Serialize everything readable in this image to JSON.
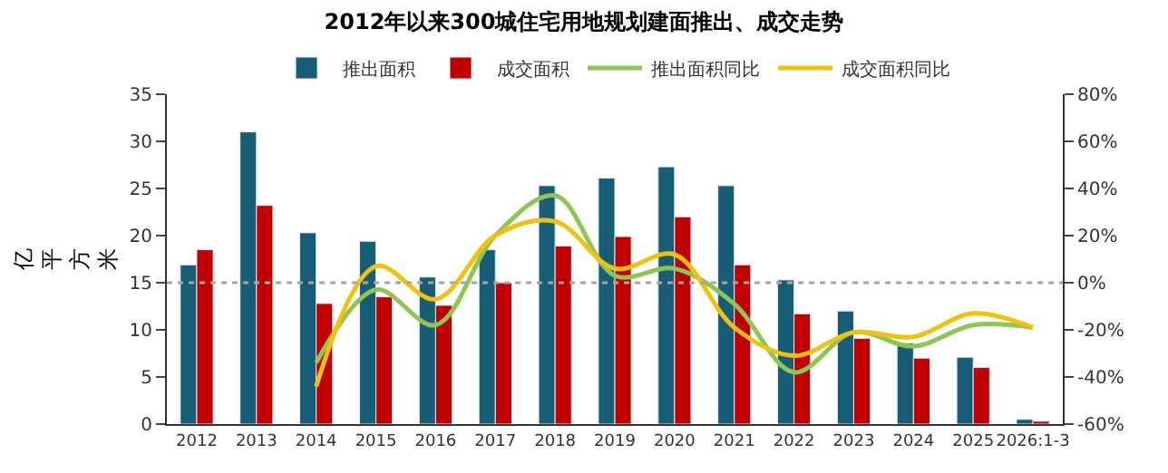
{
  "chart_data": {
    "type": "bar",
    "title": "2012年以来300城住宅用地规划建面推出、成交走势",
    "ylabel": "亿平方米",
    "categories": [
      "2012",
      "2013",
      "2014",
      "2015",
      "2016",
      "2017",
      "2018",
      "2019",
      "2020",
      "2021",
      "2022",
      "2023",
      "2024",
      "2025",
      "2026:1-3"
    ],
    "series": [
      {
        "name": "推出面积",
        "color": "#175d75",
        "values": [
          16.9,
          31.0,
          20.3,
          19.4,
          15.6,
          18.5,
          25.3,
          26.1,
          27.3,
          25.3,
          15.3,
          12.0,
          8.6,
          7.1,
          0.5
        ]
      },
      {
        "name": "成交面积",
        "color": "#c00000",
        "values": [
          18.5,
          23.2,
          12.8,
          13.5,
          12.6,
          15.0,
          18.9,
          19.9,
          22.0,
          16.9,
          11.7,
          9.1,
          7.0,
          6.0,
          0.3
        ]
      },
      {
        "name": "推出面积同比",
        "type": "line",
        "axis": "y2",
        "color": "#8dc653",
        "values": [
          null,
          null,
          -34,
          -3,
          -18,
          20,
          37,
          3,
          6,
          -9,
          -38,
          -21,
          -27,
          -18,
          -19
        ]
      },
      {
        "name": "成交面积同比",
        "type": "line",
        "axis": "y2",
        "color": "#f2c10f",
        "values": [
          null,
          null,
          -44,
          7,
          -7,
          20,
          26,
          6,
          12,
          -19,
          -31,
          -21,
          -23,
          -13,
          -19
        ]
      }
    ],
    "ylim": [
      0,
      35
    ],
    "yticks": [
      0,
      5,
      10,
      15,
      20,
      25,
      30,
      35
    ],
    "y2lim": [
      -60,
      80
    ],
    "y2ticks": [
      {
        "value": -60,
        "label": "-60%"
      },
      {
        "value": -40,
        "label": "-40%"
      },
      {
        "value": -20,
        "label": "-20%"
      },
      {
        "value": 0,
        "label": "0%"
      },
      {
        "value": 20,
        "label": "20%"
      },
      {
        "value": 40,
        "label": "40%"
      },
      {
        "value": 60,
        "label": "60%"
      },
      {
        "value": 80,
        "label": "80%"
      }
    ],
    "ref_lines": [
      {
        "axis": "y2",
        "value": 0,
        "color": "#a6a6a6",
        "line_style": "dotted"
      }
    ],
    "legend": "top",
    "marker": "none",
    "line_style": "solid"
  }
}
